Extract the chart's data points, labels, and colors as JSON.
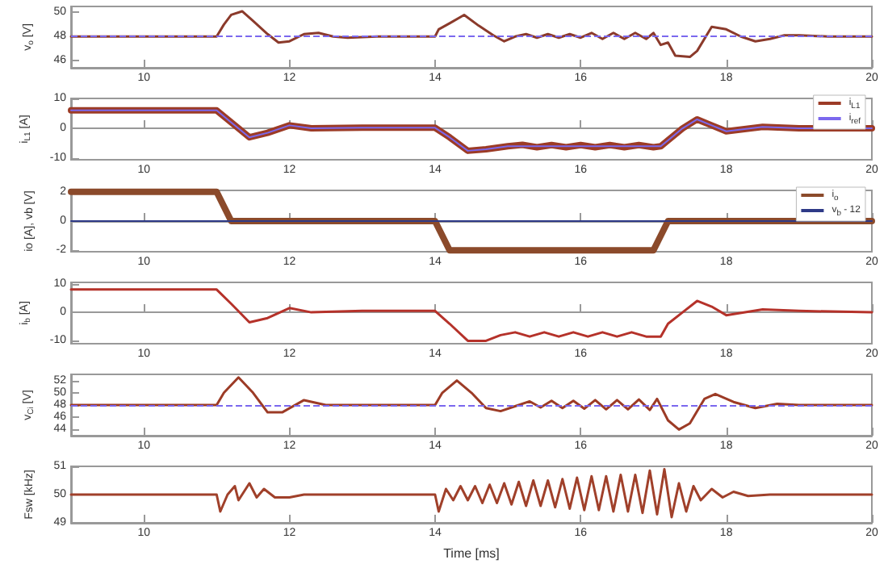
{
  "chart_data": [
    {
      "type": "line",
      "ylabel": "v$_{o}$ [V]",
      "xlim": [
        9,
        20
      ],
      "xticks": [
        10,
        12,
        14,
        16,
        18,
        20
      ],
      "ylim": [
        45.4,
        50.5
      ],
      "yticks": [
        46,
        48,
        50
      ],
      "marker": "none",
      "ref_lines": [
        {
          "axis": "y",
          "value": 48,
          "color": "#7b68ee",
          "line_style": "dashed"
        }
      ],
      "series": [
        {
          "color": "#8b3a2b",
          "x": [
            9,
            11,
            11.1,
            11.2,
            11.35,
            11.5,
            11.7,
            11.85,
            12,
            12.2,
            12.4,
            12.6,
            12.8,
            13.2,
            14,
            14.05,
            14.2,
            14.4,
            14.6,
            14.8,
            14.95,
            15.1,
            15.25,
            15.4,
            15.55,
            15.7,
            15.85,
            16,
            16.15,
            16.3,
            16.45,
            16.6,
            16.75,
            16.9,
            17,
            17.1,
            17.2,
            17.3,
            17.5,
            17.6,
            17.8,
            18,
            18.2,
            18.4,
            18.6,
            18.8,
            19,
            19.4,
            20
          ],
          "values": [
            48,
            48,
            49,
            49.8,
            50.1,
            49.3,
            48.2,
            47.5,
            47.6,
            48.2,
            48.3,
            48,
            47.9,
            48,
            48,
            48.6,
            49.1,
            49.8,
            48.9,
            48.1,
            47.6,
            48,
            48.2,
            47.9,
            48.2,
            47.9,
            48.2,
            47.9,
            48.3,
            47.8,
            48.3,
            47.8,
            48.3,
            47.8,
            48.3,
            47.3,
            47.5,
            46.4,
            46.3,
            46.8,
            48.8,
            48.6,
            48,
            47.6,
            47.8,
            48.1,
            48.1,
            48,
            48
          ]
        }
      ]
    },
    {
      "type": "line",
      "ylabel": "i$_{L1}$ [A]",
      "xlim": [
        9,
        20
      ],
      "xticks": [
        10,
        12,
        14,
        16,
        18,
        20
      ],
      "ylim": [
        -10.5,
        10
      ],
      "yticks": [
        -10,
        0,
        10
      ],
      "marker": "none",
      "legend": "top right",
      "series": [
        {
          "name": "i$_{L1}$",
          "color": "#9c3b26",
          "x": [
            9,
            11,
            11.2,
            11.45,
            11.7,
            12,
            12.3,
            13,
            14,
            14.2,
            14.45,
            14.7,
            15,
            15.2,
            15.4,
            15.6,
            15.8,
            16,
            16.2,
            16.4,
            16.6,
            16.8,
            17,
            17.1,
            17.2,
            17.4,
            17.6,
            17.8,
            18,
            18.5,
            19,
            20
          ],
          "values": [
            6,
            6,
            2,
            -3,
            -1.5,
            1,
            0,
            0.2,
            0.2,
            -3,
            -7.5,
            -7,
            -6,
            -5.5,
            -6.3,
            -5.6,
            -6.3,
            -5.6,
            -6.3,
            -5.6,
            -6.3,
            -5.6,
            -6.3,
            -6,
            -4,
            0,
            3,
            1,
            -1,
            0.5,
            0,
            0
          ]
        },
        {
          "name": "i$_{ref}$",
          "color": "#7b68ee",
          "x": [
            9,
            11,
            11.2,
            11.45,
            11.7,
            12,
            12.3,
            13,
            14,
            14.2,
            14.45,
            14.7,
            15,
            17,
            17.1,
            17.2,
            17.4,
            17.6,
            17.8,
            18,
            18.5,
            19,
            20
          ],
          "values": [
            6,
            6,
            2,
            -3,
            -1.5,
            1,
            0,
            0.2,
            0.2,
            -3,
            -7.5,
            -7,
            -6,
            -6,
            -6,
            -4,
            0,
            3,
            1,
            -1,
            0.5,
            0,
            0
          ]
        }
      ]
    },
    {
      "type": "line",
      "ylabel": "io [A], vb [V]",
      "xlim": [
        9,
        20
      ],
      "xticks": [
        10,
        12,
        14,
        16,
        18,
        20
      ],
      "ylim": [
        -2.1,
        2.1
      ],
      "yticks": [
        -2,
        0,
        2
      ],
      "marker": "none",
      "legend": "top right",
      "series": [
        {
          "name": "i$_{o}$",
          "color": "#8b4a2b",
          "x": [
            9,
            11,
            11.2,
            14,
            14.2,
            17,
            17.2,
            20
          ],
          "values": [
            2,
            2,
            0,
            0,
            -2,
            -2,
            0,
            0
          ]
        },
        {
          "name": "v$_{b}$ - 12",
          "color": "#2e3a87",
          "x": [
            9,
            20
          ],
          "values": [
            0,
            0
          ]
        }
      ]
    },
    {
      "type": "line",
      "ylabel": "i$_{b}$ [A]",
      "xlim": [
        9,
        20
      ],
      "xticks": [
        10,
        12,
        14,
        16,
        18,
        20
      ],
      "ylim": [
        -11,
        10.5
      ],
      "yticks": [
        -10,
        0,
        10
      ],
      "marker": "none",
      "series": [
        {
          "color": "#b5322a",
          "x": [
            9,
            11,
            11.2,
            11.45,
            11.7,
            12,
            12.3,
            13,
            14,
            14.2,
            14.45,
            14.7,
            14.9,
            15.1,
            15.3,
            15.5,
            15.7,
            15.9,
            16.1,
            16.3,
            16.5,
            16.7,
            16.9,
            17.1,
            17.2,
            17.4,
            17.6,
            17.8,
            18,
            18.5,
            19,
            20
          ],
          "values": [
            8,
            8,
            3,
            -3.5,
            -2,
            1.5,
            0,
            0.5,
            0.5,
            -4,
            -10,
            -10,
            -8,
            -7,
            -8.5,
            -7,
            -8.5,
            -7,
            -8.5,
            -7,
            -8.5,
            -7,
            -8.5,
            -8.5,
            -4,
            0,
            4,
            2,
            -1,
            1,
            0.5,
            0
          ]
        }
      ]
    },
    {
      "type": "line",
      "ylabel": "v$_{Ci}$ [V]",
      "xlim": [
        9,
        20
      ],
      "xticks": [
        10,
        12,
        14,
        16,
        18,
        20
      ],
      "ylim": [
        43,
        53
      ],
      "yticks": [
        44,
        46,
        48,
        50,
        52
      ],
      "marker": "none",
      "ref_lines": [
        {
          "axis": "y",
          "value": 48,
          "color": "#7b68ee",
          "line_style": "dashed"
        }
      ],
      "series": [
        {
          "color": "#9c3b26",
          "x": [
            9,
            11,
            11.1,
            11.3,
            11.5,
            11.7,
            11.9,
            12.2,
            12.5,
            13,
            14,
            14.1,
            14.3,
            14.5,
            14.7,
            14.9,
            15.1,
            15.3,
            15.45,
            15.6,
            15.75,
            15.9,
            16.05,
            16.2,
            16.35,
            16.5,
            16.65,
            16.8,
            16.95,
            17.05,
            17.2,
            17.35,
            17.5,
            17.7,
            17.85,
            18.1,
            18.4,
            18.7,
            19,
            20
          ],
          "values": [
            48,
            48,
            50,
            52.5,
            50,
            46.8,
            46.8,
            48.8,
            48,
            48,
            48,
            50,
            52,
            50,
            47.5,
            47,
            47.8,
            48.6,
            47.6,
            48.7,
            47.5,
            48.7,
            47.4,
            48.8,
            47.3,
            48.8,
            47.3,
            48.9,
            47.2,
            49,
            45.5,
            44,
            45,
            49,
            49.8,
            48.5,
            47.5,
            48.2,
            48,
            48
          ]
        }
      ]
    },
    {
      "type": "line",
      "ylabel": "Fsw [kHz]",
      "xlabel": "Time [ms]",
      "xlim": [
        9,
        20
      ],
      "xticks": [
        10,
        12,
        14,
        16,
        18,
        20
      ],
      "ylim": [
        49,
        51
      ],
      "yticks": [
        49,
        50,
        51
      ],
      "marker": "none",
      "series": [
        {
          "color": "#a0402a",
          "x": [
            9,
            11,
            11.05,
            11.15,
            11.25,
            11.3,
            11.45,
            11.55,
            11.65,
            11.8,
            12,
            12.2,
            14,
            14.05,
            14.15,
            14.25,
            14.35,
            14.45,
            14.55,
            14.65,
            14.75,
            14.85,
            14.95,
            15.05,
            15.15,
            15.25,
            15.35,
            15.45,
            15.55,
            15.65,
            15.75,
            15.85,
            15.95,
            16.05,
            16.15,
            16.25,
            16.35,
            16.45,
            16.55,
            16.65,
            16.75,
            16.85,
            16.95,
            17.05,
            17.15,
            17.25,
            17.35,
            17.45,
            17.55,
            17.65,
            17.8,
            17.95,
            18.1,
            18.3,
            18.6,
            20
          ],
          "values": [
            50,
            50,
            49.4,
            50,
            50.3,
            49.8,
            50.4,
            49.9,
            50.2,
            49.9,
            49.9,
            50,
            50,
            49.4,
            50.2,
            49.8,
            50.3,
            49.8,
            50.3,
            49.7,
            50.35,
            49.7,
            50.4,
            49.65,
            50.45,
            49.6,
            50.5,
            49.6,
            50.5,
            49.55,
            50.55,
            49.5,
            50.6,
            49.45,
            50.65,
            49.45,
            50.65,
            49.4,
            50.7,
            49.4,
            50.7,
            49.35,
            50.85,
            49.3,
            50.9,
            49.2,
            50.4,
            49.4,
            50.3,
            49.8,
            50.2,
            49.9,
            50.1,
            49.95,
            50,
            50
          ]
        }
      ]
    }
  ]
}
